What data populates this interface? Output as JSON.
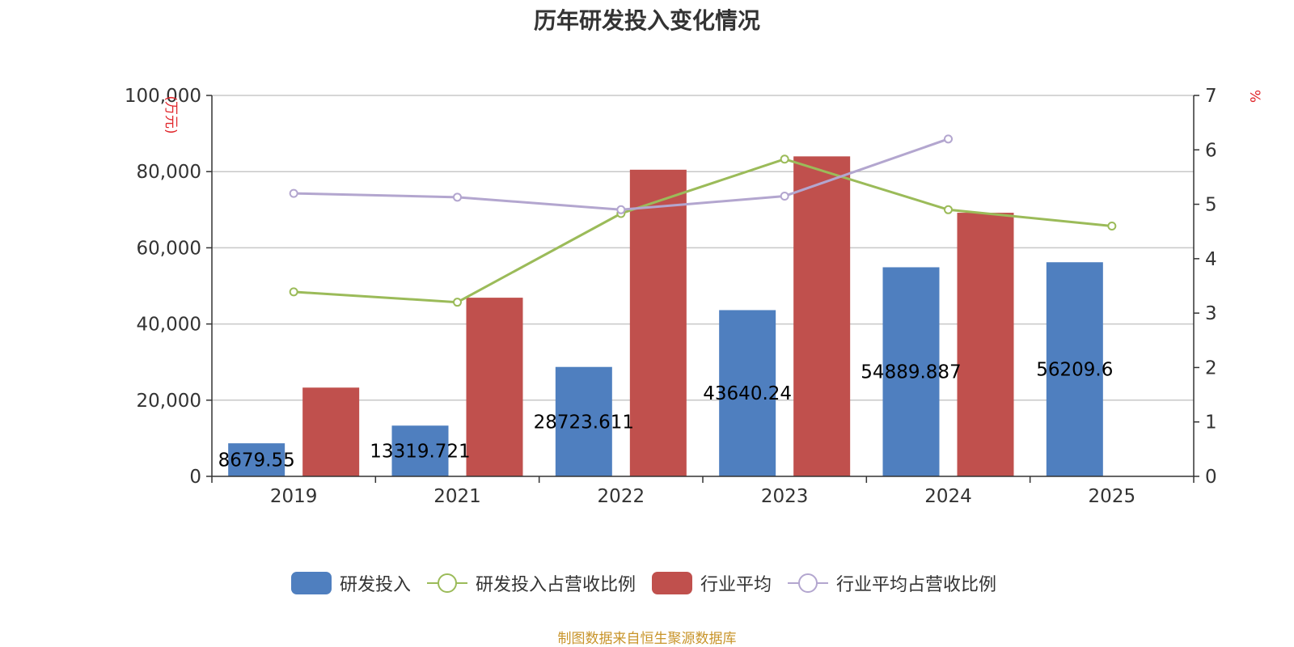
{
  "chart_data": {
    "type": "bar",
    "title": "历年研发投入变化情况",
    "categories": [
      "2019",
      "2021",
      "2022",
      "2023",
      "2024",
      "2025"
    ],
    "y_left": {
      "unit_label": "(万元)",
      "ylim": [
        0,
        100000
      ],
      "ticks": [
        "0",
        "20,000",
        "40,000",
        "60,000",
        "80,000",
        "100,000"
      ]
    },
    "y_right": {
      "unit_label": "%",
      "ylim": [
        0,
        7
      ],
      "ticks": [
        "0",
        "1",
        "2",
        "3",
        "4",
        "5",
        "6",
        "7"
      ]
    },
    "grid": true,
    "legend_position": "bottom",
    "series": [
      {
        "name": "研发投入",
        "kind": "bar",
        "axis": "left",
        "color": "#4f7fbf",
        "values": [
          8679.55,
          13319.721,
          28723.611,
          43640.24,
          54889.887,
          56209.6
        ],
        "data_labels": [
          "8679.55",
          "13319.721",
          "28723.611",
          "43640.24",
          "54889.887",
          "56209.6"
        ]
      },
      {
        "name": "研发投入占营收比例",
        "kind": "line",
        "axis": "right",
        "color": "#9bbb59",
        "values": [
          3.39,
          3.2,
          4.83,
          5.83,
          4.9,
          4.6
        ]
      },
      {
        "name": "行业平均",
        "kind": "bar",
        "axis": "left",
        "color": "#c0504d",
        "values": [
          23300,
          46900,
          80500,
          84000,
          69200,
          null
        ]
      },
      {
        "name": "行业平均占营收比例",
        "kind": "line",
        "axis": "right",
        "color": "#b3a6cf",
        "values": [
          5.2,
          5.13,
          4.9,
          5.15,
          6.2,
          null
        ]
      }
    ]
  },
  "footer": {
    "source": "制图数据来自恒生聚源数据库"
  }
}
